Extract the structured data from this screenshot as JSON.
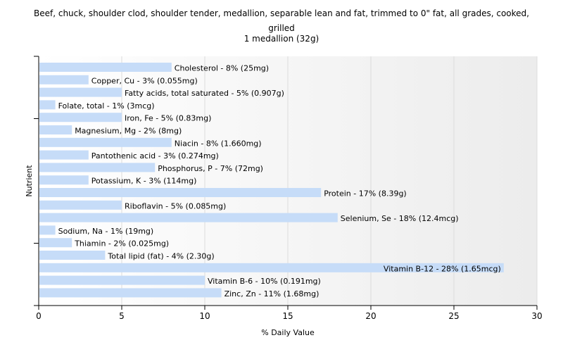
{
  "chart_data": {
    "type": "bar",
    "orientation": "horizontal",
    "title_line1": "Beef, chuck, shoulder clod, shoulder tender, medallion, separable lean and fat, trimmed to 0\" fat, all grades, cooked,",
    "title_line2": "grilled",
    "subtitle": "1 medallion (32g)",
    "xlabel": "% Daily Value",
    "ylabel": "Nutrient",
    "xlim": [
      0,
      30
    ],
    "xticks": [
      "0",
      "5",
      "10",
      "15",
      "20",
      "25",
      "30"
    ],
    "grid": true,
    "bar_color": "#c6dcf8",
    "categories": [
      "Cholesterol",
      "Copper, Cu",
      "Fatty acids, total saturated",
      "Folate, total",
      "Iron, Fe",
      "Magnesium, Mg",
      "Niacin",
      "Pantothenic acid",
      "Phosphorus, P",
      "Potassium, K",
      "Protein",
      "Riboflavin",
      "Selenium, Se",
      "Sodium, Na",
      "Thiamin",
      "Total lipid (fat)",
      "Vitamin B-12",
      "Vitamin B-6",
      "Zinc, Zn"
    ],
    "values": [
      8,
      3,
      5,
      1,
      5,
      2,
      8,
      3,
      7,
      3,
      17,
      5,
      18,
      1,
      2,
      4,
      28,
      10,
      11
    ],
    "labels": [
      "Cholesterol - 8% (25mg)",
      "Copper, Cu - 3% (0.055mg)",
      "Fatty acids, total saturated - 5% (0.907g)",
      "Folate, total - 1% (3mcg)",
      "Iron, Fe - 5% (0.83mg)",
      "Magnesium, Mg - 2% (8mg)",
      "Niacin - 8% (1.660mg)",
      "Pantothenic acid - 3% (0.274mg)",
      "Phosphorus, P - 7% (72mg)",
      "Potassium, K - 3% (114mg)",
      "Protein - 17% (8.39g)",
      "Riboflavin - 5% (0.085mg)",
      "Selenium, Se - 18% (12.4mcg)",
      "Sodium, Na - 1% (19mg)",
      "Thiamin - 2% (0.025mg)",
      "Total lipid (fat) - 4% (2.30g)",
      "Vitamin B-12 - 28% (1.65mcg)",
      "Vitamin B-6 - 10% (0.191mg)",
      "Zinc, Zn - 11% (1.68mg)"
    ]
  }
}
